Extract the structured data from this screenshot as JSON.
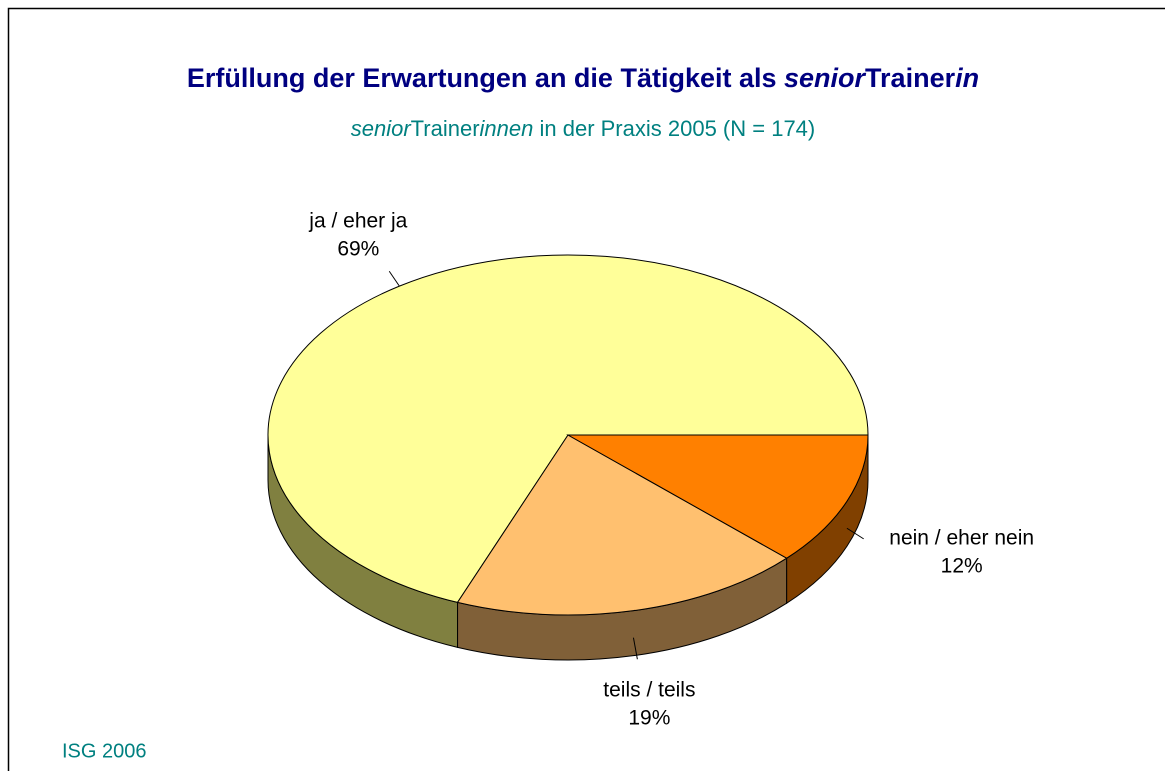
{
  "chart_data": {
    "type": "pie3d",
    "title": [
      {
        "text": "Erfüllung der Erwartungen an die Tätigkeit als ",
        "italic": false
      },
      {
        "text": "senior",
        "italic": true
      },
      {
        "text": "Trainer",
        "italic": false
      },
      {
        "text": "in",
        "italic": true
      }
    ],
    "subtitle": [
      {
        "text": "senior",
        "italic": true
      },
      {
        "text": "Trainer",
        "italic": false
      },
      {
        "text": "innen",
        "italic": true
      },
      {
        "text": " in der Praxis 2005 (N = 174)",
        "italic": false
      }
    ],
    "categories": [
      "ja / eher ja",
      "teils / teils",
      "nein / eher nein"
    ],
    "values": [
      69,
      19,
      12
    ],
    "value_labels": [
      "69%",
      "19%",
      "12%"
    ],
    "colors": [
      "#ffff99",
      "#ffc06f",
      "#ff8000"
    ],
    "side_colors": [
      "#808040",
      "#806038",
      "#804000"
    ],
    "source": "ISG 2006"
  }
}
